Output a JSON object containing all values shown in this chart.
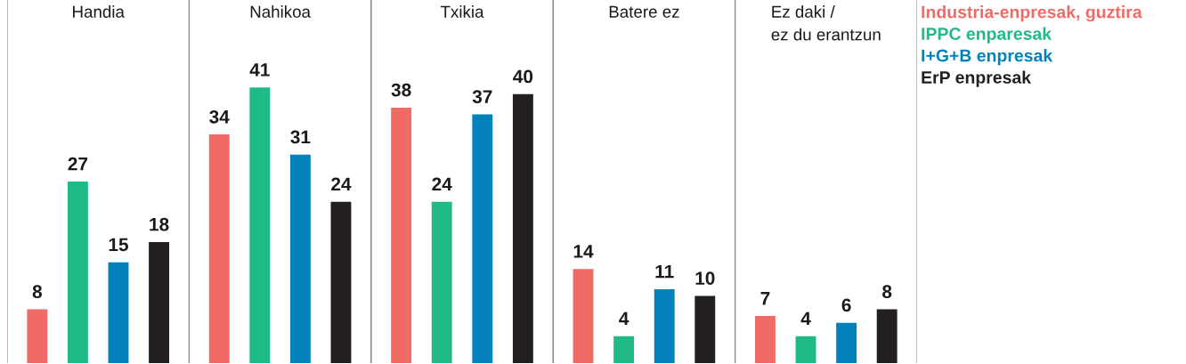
{
  "chart_data": {
    "type": "bar",
    "categories": [
      "Handia",
      "Nahikoa",
      "Txikia",
      "Batere ez",
      "Ez daki /\nez du erantzun"
    ],
    "series": [
      {
        "name": "Industria-enpresak, guztira",
        "color": "#f06a66",
        "values": [
          8,
          34,
          38,
          14,
          7
        ]
      },
      {
        "name": "IPPC enparesak",
        "color": "#1fba88",
        "values": [
          27,
          41,
          24,
          4,
          4
        ]
      },
      {
        "name": "I+G+B enpresak",
        "color": "#0381bb",
        "values": [
          15,
          31,
          37,
          11,
          6
        ]
      },
      {
        "name": "ErP enpresak",
        "color": "#231f20",
        "values": [
          18,
          24,
          40,
          10,
          8
        ]
      }
    ],
    "ylim": [
      0,
      54
    ],
    "data_labels": true,
    "legend": "right"
  }
}
